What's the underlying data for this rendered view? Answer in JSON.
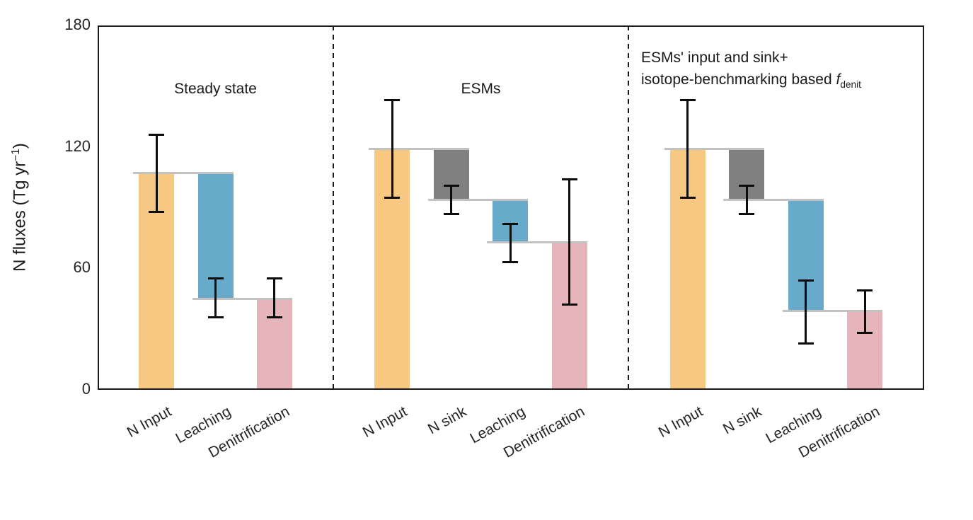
{
  "figure": {
    "ylabel": {
      "prefix": "N fluxes (Tg yr",
      "superscript": "−1",
      "suffix": ")"
    }
  },
  "chart_data": {
    "type": "bar",
    "subtype": "waterfall-grouped-panels",
    "title": "",
    "ylabel": "N fluxes (Tg yr^-1)",
    "xlabel": "",
    "ylim": [
      0,
      180
    ],
    "yticks": [
      0,
      60,
      120,
      180
    ],
    "ytick_labels": [
      "0",
      "60",
      "120",
      "180"
    ],
    "grid": false,
    "legend": "none",
    "colors": {
      "input": "#F6C881",
      "sink": "#808080",
      "leaching": "#68AAC9",
      "denitrification": "#E6B5BC",
      "connector": "#C2C2C2",
      "error_bar": "#0d0d0d",
      "frame": "#1A1A1A",
      "text": "#262626"
    },
    "panels": [
      {
        "title": "Steady state",
        "title_align": "center",
        "title_segments": [
          [
            {
              "t": "Steady state"
            }
          ]
        ],
        "categories": [
          "N Input",
          "Leaching",
          "Denitrification"
        ],
        "bars": [
          {
            "label": "N Input",
            "span": [
              0,
              107
            ],
            "error": [
              88,
              126
            ],
            "color": "input"
          },
          {
            "label": "Leaching",
            "span": [
              45,
              107
            ],
            "error": [
              36,
              55
            ],
            "color": "leaching"
          },
          {
            "label": "Denitrification",
            "span": [
              0,
              45
            ],
            "error": [
              36,
              55
            ],
            "color": "denitrification"
          }
        ]
      },
      {
        "title": "ESMs",
        "title_align": "center",
        "title_segments": [
          [
            {
              "t": "ESMs"
            }
          ]
        ],
        "categories": [
          "N Input",
          "N sink",
          "Leaching",
          "Denitrification"
        ],
        "bars": [
          {
            "label": "N Input",
            "span": [
              0,
              119
            ],
            "error": [
              95,
              143
            ],
            "color": "input"
          },
          {
            "label": "N sink",
            "span": [
              94,
              119
            ],
            "error": [
              87,
              101
            ],
            "color": "sink"
          },
          {
            "label": "Leaching",
            "span": [
              73,
              94
            ],
            "error": [
              63,
              82
            ],
            "color": "leaching"
          },
          {
            "label": "Denitrification",
            "span": [
              0,
              73
            ],
            "error": [
              42,
              104
            ],
            "color": "denitrification"
          }
        ]
      },
      {
        "title": "ESMs' input and sink+ isotope-benchmarking based f_denit",
        "title_align": "left",
        "title_segments": [
          [
            {
              "t": "ESMs' input and sink+"
            }
          ],
          [
            {
              "t": "isotope-benchmarking based "
            },
            {
              "t": "f",
              "style": "italic"
            },
            {
              "t": "denit",
              "style": "sub"
            }
          ]
        ],
        "categories": [
          "N Input",
          "N sink",
          "Leaching",
          "Denitrification"
        ],
        "bars": [
          {
            "label": "N Input",
            "span": [
              0,
              119
            ],
            "error": [
              95,
              143
            ],
            "color": "input"
          },
          {
            "label": "N sink",
            "span": [
              94,
              119
            ],
            "error": [
              87,
              101
            ],
            "color": "sink"
          },
          {
            "label": "Leaching",
            "span": [
              39,
              94
            ],
            "error": [
              23,
              54
            ],
            "color": "leaching"
          },
          {
            "label": "Denitrification",
            "span": [
              0,
              39
            ],
            "error": [
              28,
              49
            ],
            "color": "denitrification"
          }
        ]
      }
    ]
  }
}
